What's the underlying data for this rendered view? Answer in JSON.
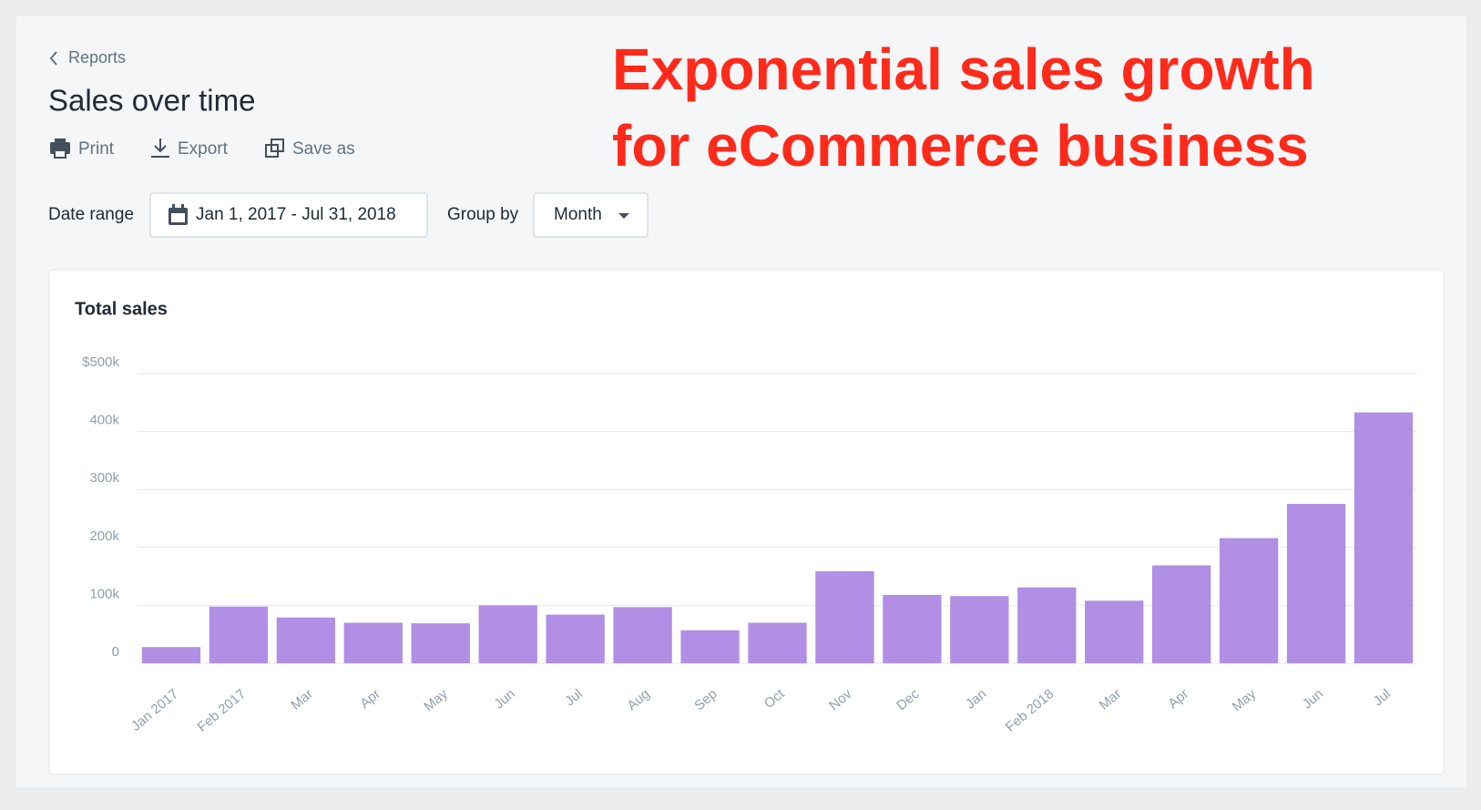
{
  "nav": {
    "back": "Reports"
  },
  "header": {
    "title": "Sales over time",
    "actions": [
      "Print",
      "Export",
      "Save as"
    ]
  },
  "filters": {
    "date_range_label": "Date range",
    "date_range": "Jan 1, 2017 - Jul 31, 2018",
    "group_by_label": "Group by",
    "group_by": "Month"
  },
  "annotation": [
    "Exponential sales growth",
    "for eCommerce business"
  ],
  "chart_data": {
    "type": "bar",
    "title": "Total sales",
    "categories": [
      "Jan 2017",
      "Feb 2017",
      "Mar",
      "Apr",
      "May",
      "Jun",
      "Jul",
      "Aug",
      "Sep",
      "Oct",
      "Nov",
      "Dec",
      "Jan",
      "Feb 2018",
      "Mar",
      "Apr",
      "May",
      "Jun",
      "Jul"
    ],
    "values": [
      28000,
      98000,
      79000,
      70000,
      69000,
      100000,
      84000,
      97000,
      57000,
      70000,
      159000,
      118000,
      116000,
      131000,
      108000,
      169000,
      216000,
      275000,
      433000
    ],
    "color": "#b08fe5",
    "ylim": [
      0,
      500000
    ],
    "yticks": [
      0,
      {
        "value": 100000,
        "label": "100k"
      },
      {
        "value": 200000,
        "label": "200k"
      },
      {
        "value": 300000,
        "label": "300k"
      },
      {
        "value": 400000,
        "label": "400k"
      },
      {
        "value": 500000,
        "label": "$500k"
      }
    ],
    "grid": true
  }
}
